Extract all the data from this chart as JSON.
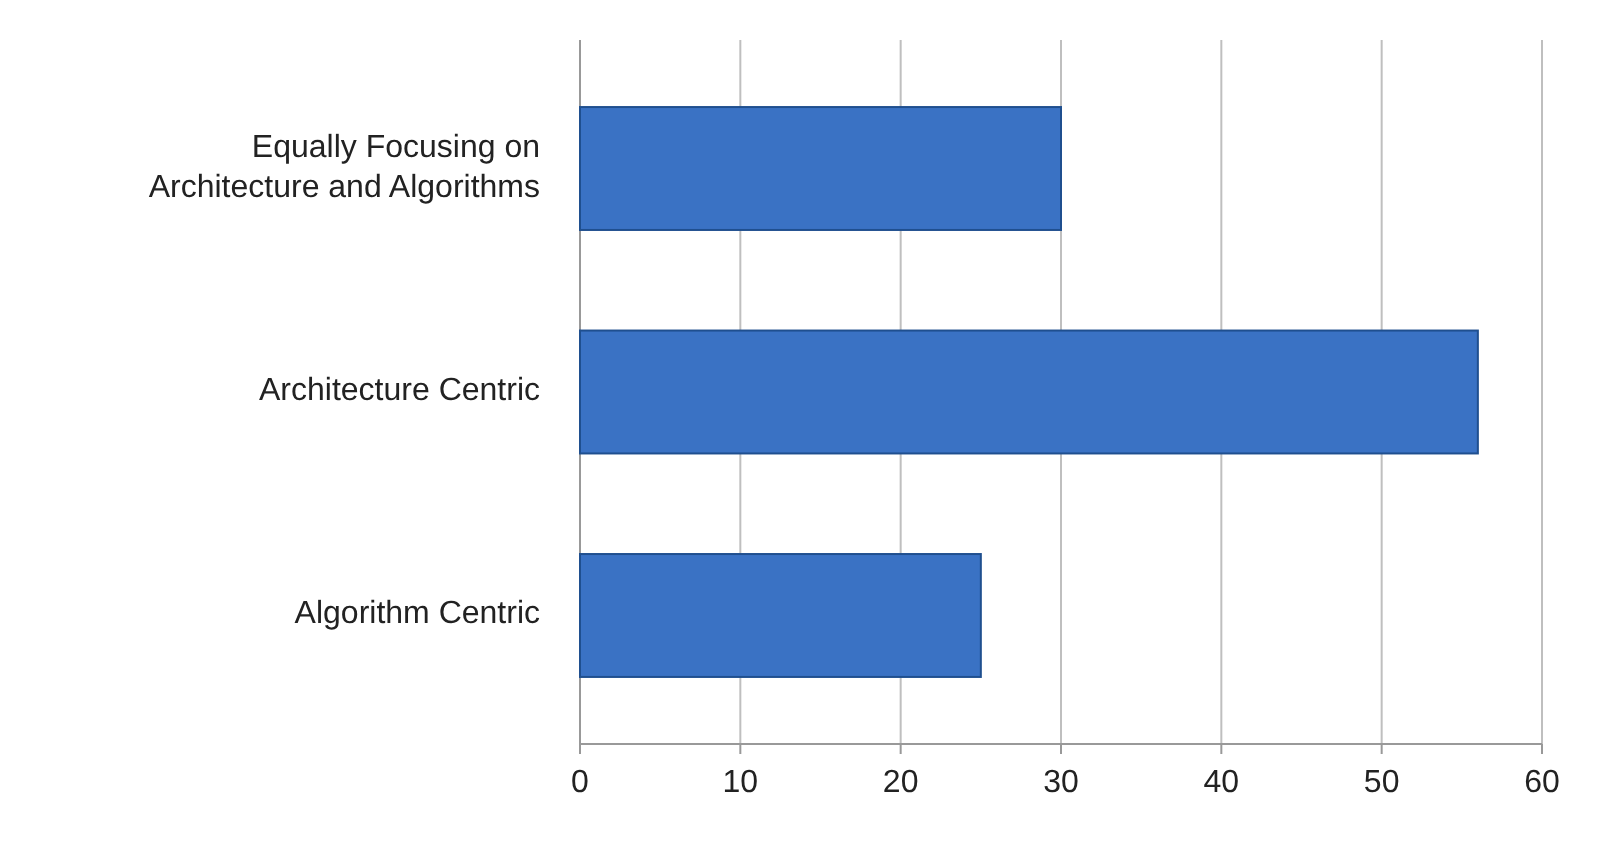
{
  "chart_data": {
    "type": "bar",
    "orientation": "horizontal",
    "categories": [
      "Equally Focusing on Architecture and Algorithms",
      "Architecture Centric",
      "Algorithm Centric"
    ],
    "values": [
      30,
      56,
      25
    ],
    "color": "#3a72c4",
    "xlim": [
      0,
      60
    ],
    "xticks": [
      0,
      10,
      20,
      30,
      40,
      50,
      60
    ],
    "grid": "x"
  }
}
